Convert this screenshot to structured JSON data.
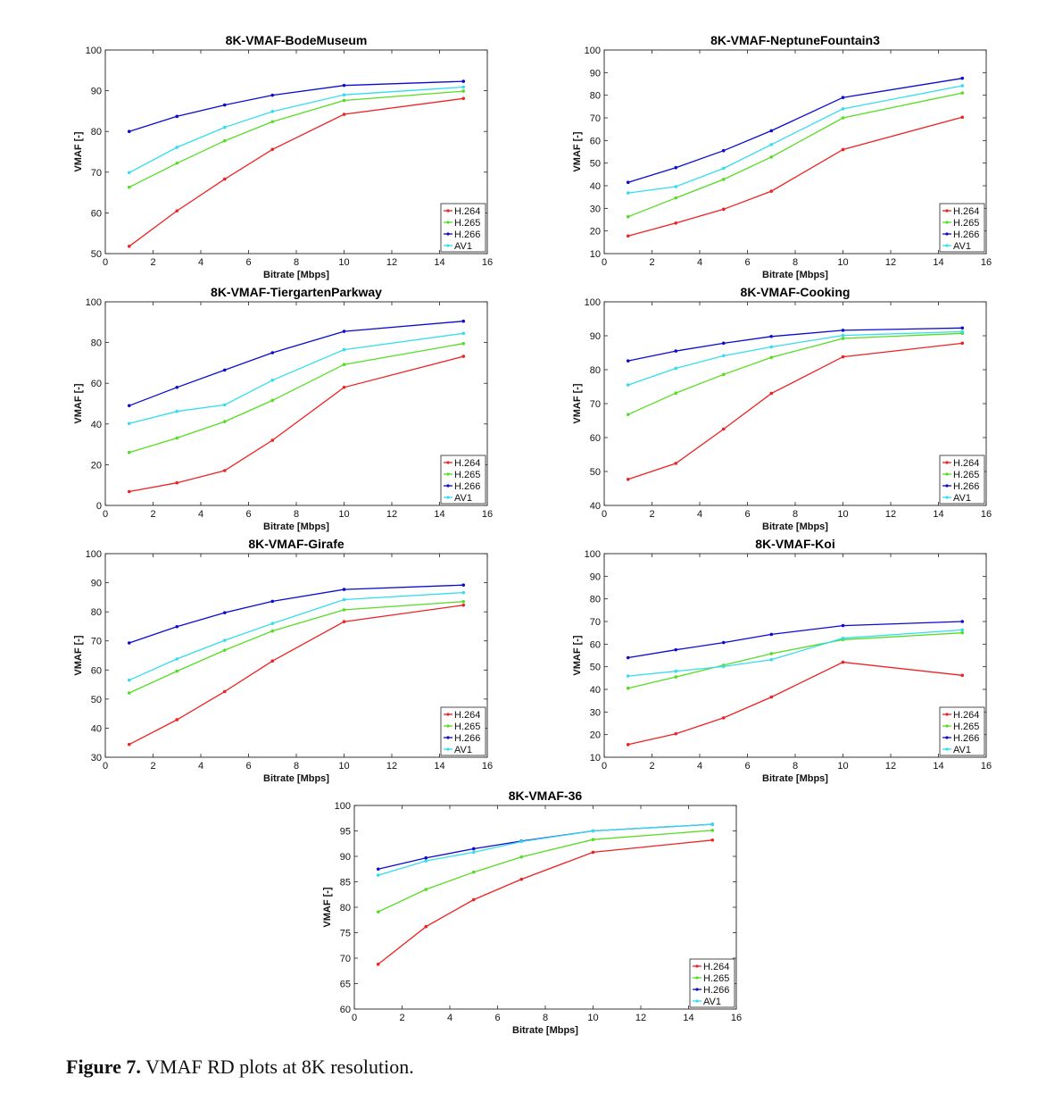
{
  "figure": {
    "caption_label": "Figure 7.",
    "caption_text": "VMAF RD plots at 8K resolution."
  },
  "colors": {
    "H.264": "#ee2222",
    "H.265": "#55dd22",
    "H.266": "#0a0ad0",
    "AV1": "#33ddee"
  },
  "chart_data": [
    {
      "type": "line",
      "title": "8K-VMAF-BodeMuseum",
      "xlabel": "Bitrate [Mbps]",
      "ylabel": "VMAF [-]",
      "xlim": [
        0,
        16
      ],
      "ylim": [
        50,
        100
      ],
      "xticks": [
        0,
        2,
        4,
        6,
        8,
        10,
        12,
        14,
        16
      ],
      "yticks": [
        50,
        60,
        70,
        80,
        90,
        100
      ],
      "legend": "bottom-right",
      "x": [
        1,
        3,
        5,
        7,
        10,
        15
      ],
      "series": [
        {
          "name": "H.264",
          "values": [
            51.8,
            60.5,
            68.3,
            75.6,
            84.2,
            88.1
          ]
        },
        {
          "name": "H.265",
          "values": [
            66.3,
            72.2,
            77.7,
            82.4,
            87.6,
            89.9
          ]
        },
        {
          "name": "H.266",
          "values": [
            80.0,
            83.7,
            86.5,
            88.9,
            91.3,
            92.3
          ]
        },
        {
          "name": "AV1",
          "values": [
            69.9,
            76.1,
            81.0,
            84.9,
            89.0,
            90.9
          ]
        }
      ]
    },
    {
      "type": "line",
      "title": "8K-VMAF-NeptuneFountain3",
      "xlabel": "Bitrate [Mbps]",
      "ylabel": "VMAF [-]",
      "xlim": [
        0,
        16
      ],
      "ylim": [
        10,
        100
      ],
      "xticks": [
        0,
        2,
        4,
        6,
        8,
        10,
        12,
        14,
        16
      ],
      "yticks": [
        10,
        20,
        30,
        40,
        50,
        60,
        70,
        80,
        90,
        100
      ],
      "legend": "bottom-right",
      "x": [
        1,
        3,
        5,
        7,
        10,
        15
      ],
      "series": [
        {
          "name": "H.264",
          "values": [
            17.8,
            23.5,
            29.6,
            37.6,
            56.0,
            70.3
          ]
        },
        {
          "name": "H.265",
          "values": [
            26.3,
            34.6,
            42.8,
            52.7,
            70.0,
            81.0
          ]
        },
        {
          "name": "H.266",
          "values": [
            41.5,
            48.0,
            55.5,
            64.3,
            79.0,
            87.5
          ]
        },
        {
          "name": "AV1",
          "values": [
            36.8,
            39.6,
            47.7,
            58.2,
            74.0,
            84.2
          ]
        }
      ]
    },
    {
      "type": "line",
      "title": "8K-VMAF-TiergartenParkway",
      "xlabel": "Bitrate [Mbps]",
      "ylabel": "VMAF [-]",
      "xlim": [
        0,
        16
      ],
      "ylim": [
        0,
        100
      ],
      "xticks": [
        0,
        2,
        4,
        6,
        8,
        10,
        12,
        14,
        16
      ],
      "yticks": [
        0,
        20,
        40,
        60,
        80,
        100
      ],
      "legend": "bottom-right",
      "x": [
        1,
        3,
        5,
        7,
        10,
        15
      ],
      "series": [
        {
          "name": "H.264",
          "values": [
            6.8,
            11.1,
            17.1,
            32.0,
            58.0,
            73.2
          ]
        },
        {
          "name": "H.265",
          "values": [
            26.0,
            33.1,
            41.2,
            51.6,
            69.2,
            79.5
          ]
        },
        {
          "name": "H.266",
          "values": [
            49.0,
            58.0,
            66.5,
            75.0,
            85.5,
            90.5
          ]
        },
        {
          "name": "AV1",
          "values": [
            40.2,
            46.2,
            49.4,
            61.5,
            76.5,
            84.5
          ]
        }
      ]
    },
    {
      "type": "line",
      "title": "8K-VMAF-Cooking",
      "xlabel": "Bitrate [Mbps]",
      "ylabel": "VMAF [-]",
      "xlim": [
        0,
        16
      ],
      "ylim": [
        40,
        100
      ],
      "xticks": [
        0,
        2,
        4,
        6,
        8,
        10,
        12,
        14,
        16
      ],
      "yticks": [
        40,
        50,
        60,
        70,
        80,
        90,
        100
      ],
      "legend": "bottom-right",
      "x": [
        1,
        3,
        5,
        7,
        10,
        15
      ],
      "series": [
        {
          "name": "H.264",
          "values": [
            47.7,
            52.4,
            62.5,
            73.0,
            83.8,
            87.8
          ]
        },
        {
          "name": "H.265",
          "values": [
            66.8,
            73.1,
            78.6,
            83.6,
            89.2,
            90.7
          ]
        },
        {
          "name": "H.266",
          "values": [
            82.6,
            85.5,
            87.8,
            89.8,
            91.6,
            92.3
          ]
        },
        {
          "name": "AV1",
          "values": [
            75.5,
            80.4,
            84.1,
            86.7,
            90.1,
            91.2
          ]
        }
      ]
    },
    {
      "type": "line",
      "title": "8K-VMAF-Girafe",
      "xlabel": "Bitrate [Mbps]",
      "ylabel": "VMAF [-]",
      "xlim": [
        0,
        16
      ],
      "ylim": [
        30,
        100
      ],
      "xticks": [
        0,
        2,
        4,
        6,
        8,
        10,
        12,
        14,
        16
      ],
      "yticks": [
        30,
        40,
        50,
        60,
        70,
        80,
        90,
        100
      ],
      "legend": "bottom-right",
      "x": [
        1,
        3,
        5,
        7,
        10,
        15
      ],
      "series": [
        {
          "name": "H.264",
          "values": [
            34.4,
            42.9,
            52.6,
            63.1,
            76.6,
            82.3
          ]
        },
        {
          "name": "H.265",
          "values": [
            52.1,
            59.6,
            66.8,
            73.4,
            80.7,
            83.5
          ]
        },
        {
          "name": "H.266",
          "values": [
            69.3,
            74.9,
            79.7,
            83.6,
            87.7,
            89.2
          ]
        },
        {
          "name": "AV1",
          "values": [
            56.5,
            63.8,
            70.2,
            76.0,
            84.2,
            86.6
          ]
        }
      ]
    },
    {
      "type": "line",
      "title": "8K-VMAF-Koi",
      "xlabel": "Bitrate [Mbps]",
      "ylabel": "VMAF [-]",
      "xlim": [
        0,
        16
      ],
      "ylim": [
        10,
        100
      ],
      "xticks": [
        0,
        2,
        4,
        6,
        8,
        10,
        12,
        14,
        16
      ],
      "yticks": [
        10,
        20,
        30,
        40,
        50,
        60,
        70,
        80,
        90,
        100
      ],
      "legend": "bottom-right",
      "x": [
        1,
        3,
        5,
        7,
        10,
        15
      ],
      "series": [
        {
          "name": "H.264",
          "values": [
            15.6,
            20.4,
            27.4,
            36.6,
            52.0,
            46.2
          ]
        },
        {
          "name": "H.265",
          "values": [
            40.5,
            45.5,
            50.7,
            55.8,
            62.0,
            65.0
          ]
        },
        {
          "name": "H.266",
          "values": [
            54.0,
            57.5,
            60.7,
            64.3,
            68.2,
            70.0
          ]
        },
        {
          "name": "AV1",
          "values": [
            45.9,
            48.0,
            50.1,
            53.1,
            62.6,
            66.3
          ]
        }
      ]
    },
    {
      "type": "line",
      "title": "8K-VMAF-36",
      "xlabel": "Bitrate [Mbps]",
      "ylabel": "VMAF [-]",
      "xlim": [
        0,
        16
      ],
      "ylim": [
        60,
        100
      ],
      "xticks": [
        0,
        2,
        4,
        6,
        8,
        10,
        12,
        14,
        16
      ],
      "yticks": [
        60,
        65,
        70,
        75,
        80,
        85,
        90,
        95,
        100
      ],
      "legend": "bottom-right",
      "x": [
        1,
        3,
        5,
        7,
        10,
        15
      ],
      "series": [
        {
          "name": "H.264",
          "values": [
            68.8,
            76.2,
            81.5,
            85.5,
            90.8,
            93.2
          ]
        },
        {
          "name": "H.265",
          "values": [
            79.1,
            83.5,
            86.9,
            89.9,
            93.3,
            95.1
          ]
        },
        {
          "name": "H.266",
          "values": [
            87.5,
            89.7,
            91.5,
            93.0,
            95.0,
            96.3
          ]
        },
        {
          "name": "AV1",
          "values": [
            86.3,
            89.1,
            90.8,
            92.9,
            95.0,
            96.3
          ]
        }
      ]
    }
  ]
}
